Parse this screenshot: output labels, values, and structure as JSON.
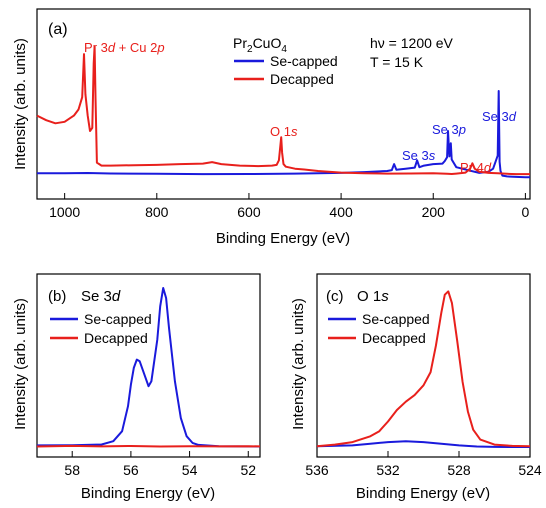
{
  "chart_data": [
    {
      "type": "line",
      "panel_label": "(a)",
      "compound": "Pr2CuO4",
      "photon_energy": "hν = 1200 eV",
      "temperature": "T = 15 K",
      "xlabel": "Binding Energy (eV)",
      "ylabel": "Intensity (arb. units)",
      "xlim": [
        1060,
        -10
      ],
      "ylim": [
        0,
        100
      ],
      "x_ticks": [
        1000,
        800,
        600,
        400,
        200,
        0
      ],
      "legend": [
        "Se-capped",
        "Decapped"
      ],
      "legend_position": "top-center",
      "colors": {
        "Se-capped": "#1a1adc",
        "Decapped": "#e8201c"
      },
      "annotations": [
        {
          "text": "Pr 3d + Cu 2p",
          "x": 950,
          "y": 88,
          "color": "#e8201c"
        },
        {
          "text": "O 1s",
          "x": 530,
          "y": 35,
          "color": "#e8201c"
        },
        {
          "text": "Pr 4d",
          "x": 115,
          "y": 12,
          "color": "#e8201c"
        },
        {
          "text": "Se 3s",
          "x": 232,
          "y": 17,
          "color": "#1a1adc"
        },
        {
          "text": "Se 3p",
          "x": 165,
          "y": 34,
          "color": "#1a1adc"
        },
        {
          "text": "Se 3d",
          "x": 56,
          "y": 44,
          "color": "#1a1adc"
        }
      ],
      "series": [
        {
          "name": "Se-capped",
          "color": "#1a1adc",
          "x": [
            1060,
            1000,
            950,
            900,
            800,
            700,
            600,
            500,
            400,
            350,
            300,
            290,
            285,
            280,
            260,
            240,
            235,
            230,
            220,
            200,
            180,
            175,
            170,
            168,
            165,
            162,
            160,
            150,
            120,
            100,
            80,
            70,
            60,
            58,
            56,
            54,
            50,
            40,
            20,
            0,
            -10
          ],
          "y": [
            10.5,
            10.6,
            10.7,
            10.4,
            10.2,
            10.0,
            10.1,
            10.3,
            10.8,
            11.3,
            12.0,
            12.6,
            16.5,
            12.8,
            13.5,
            14.2,
            19.0,
            14.5,
            15.5,
            16.5,
            16.8,
            18.5,
            21.0,
            38.0,
            21.5,
            30.0,
            19.5,
            14.5,
            12.2,
            10.8,
            11.5,
            13.5,
            22.0,
            64.0,
            18.0,
            12.0,
            9.0,
            8.5,
            8.2,
            8.0,
            8.0
          ]
        },
        {
          "name": "Decapped",
          "color": "#e8201c",
          "x": [
            1060,
            1040,
            1020,
            1000,
            980,
            970,
            962,
            958,
            955,
            950,
            945,
            940,
            937,
            935,
            933,
            930,
            920,
            900,
            850,
            800,
            750,
            700,
            680,
            660,
            620,
            580,
            550,
            540,
            535,
            532,
            530,
            528,
            525,
            520,
            500,
            480,
            450,
            400,
            350,
            300,
            250,
            200,
            170,
            160,
            150,
            130,
            120,
            115,
            110,
            100,
            80,
            60,
            40,
            20,
            0,
            -10
          ],
          "y": [
            48.0,
            45.0,
            43.0,
            44.0,
            48.0,
            52.0,
            60.0,
            88.0,
            62.0,
            48.0,
            38.0,
            40.0,
            82.0,
            93.0,
            60.0,
            17.5,
            15.5,
            15.5,
            15.8,
            16.0,
            16.5,
            16.8,
            17.8,
            16.5,
            15.5,
            15.2,
            15.5,
            16.0,
            19.0,
            28.0,
            34.0,
            24.0,
            16.5,
            14.8,
            13.5,
            13.0,
            12.0,
            11.0,
            10.5,
            10.3,
            10.4,
            10.5,
            10.2,
            10.1,
            10.3,
            11.0,
            13.5,
            17.0,
            13.5,
            11.5,
            10.8,
            10.5,
            10.2,
            10.0,
            10.0,
            10.0
          ]
        }
      ]
    },
    {
      "type": "line",
      "panel_label": "(b)",
      "title": "Se 3d",
      "xlabel": "Binding Energy (eV)",
      "ylabel": "Intensity (arb. units)",
      "xlim": [
        59.2,
        51.6
      ],
      "ylim": [
        0,
        100
      ],
      "x_ticks": [
        58,
        56,
        54,
        52
      ],
      "legend": [
        "Se-capped",
        "Decapped"
      ],
      "legend_position": "top-left",
      "series": [
        {
          "name": "Se-capped",
          "color": "#1a1adc",
          "x": [
            59.2,
            58.0,
            57.0,
            56.6,
            56.3,
            56.1,
            56.0,
            55.9,
            55.8,
            55.7,
            55.5,
            55.4,
            55.3,
            55.1,
            55.0,
            54.9,
            54.8,
            54.7,
            54.5,
            54.3,
            54.1,
            53.9,
            53.7,
            53.0,
            51.6
          ],
          "y": [
            1.5,
            1.6,
            2.0,
            4.0,
            10.0,
            25.0,
            38.0,
            48.0,
            53.0,
            52.0,
            42.0,
            37.0,
            40.0,
            65.0,
            85.0,
            96.0,
            90.0,
            72.0,
            40.0,
            18.0,
            7.0,
            3.0,
            1.8,
            1.0,
            0.8
          ]
        },
        {
          "name": "Decapped",
          "color": "#e8201c",
          "x": [
            59.2,
            58.0,
            57.0,
            56.0,
            55.0,
            54.0,
            53.0,
            52.0,
            51.6
          ],
          "y": [
            0.8,
            1.2,
            0.9,
            1.1,
            0.8,
            1.0,
            0.9,
            1.0,
            0.9
          ]
        }
      ]
    },
    {
      "type": "line",
      "panel_label": "(c)",
      "title": "O 1s",
      "xlabel": "Binding Energy (eV)",
      "ylabel": "Intensity (arb. units)",
      "xlim": [
        536,
        524
      ],
      "ylim": [
        0,
        100
      ],
      "x_ticks": [
        536,
        532,
        528,
        524
      ],
      "legend": [
        "Se-capped",
        "Decapped"
      ],
      "legend_position": "top-left",
      "series": [
        {
          "name": "Se-capped",
          "color": "#1a1adc",
          "x": [
            536,
            534,
            533,
            532,
            531,
            530,
            529,
            528,
            527,
            526,
            524
          ],
          "y": [
            1.0,
            1.5,
            2.5,
            3.5,
            4.0,
            3.5,
            2.5,
            1.5,
            0.8,
            0.6,
            0.5
          ]
        },
        {
          "name": "Decapped",
          "color": "#e8201c",
          "x": [
            536,
            535,
            534,
            533,
            532.5,
            532,
            531.5,
            531,
            530.5,
            530,
            529.6,
            529.3,
            529.0,
            528.8,
            528.6,
            528.4,
            528.1,
            527.8,
            527.5,
            527.2,
            526.8,
            526,
            525,
            524
          ],
          "y": [
            1.0,
            2.0,
            3.5,
            7.0,
            10.0,
            16.0,
            23.0,
            28.0,
            32.0,
            38.0,
            46.0,
            62.0,
            82.0,
            93.0,
            95.0,
            88.0,
            65.0,
            40.0,
            22.0,
            11.0,
            5.0,
            2.0,
            1.2,
            1.0
          ]
        }
      ]
    }
  ]
}
